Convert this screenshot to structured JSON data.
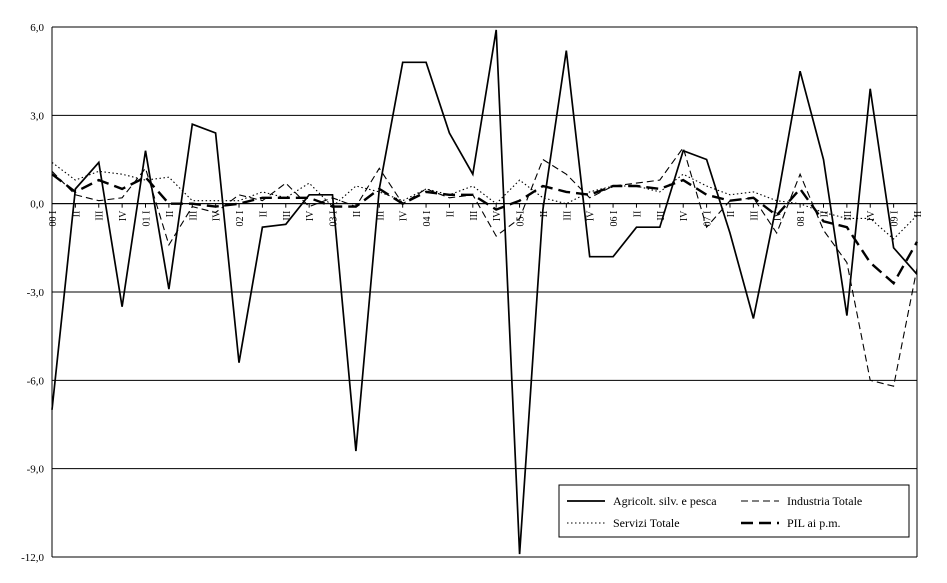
{
  "chart_data": {
    "type": "line",
    "title": "",
    "xlabel": "",
    "ylabel": "",
    "ylim": [
      -12,
      6
    ],
    "y_ticks": [
      "6,0",
      "3,0",
      "0,0",
      "-3,0",
      "-6,0",
      "-9,0",
      "-12,0"
    ],
    "y_tick_values": [
      6,
      3,
      0,
      -3,
      -6,
      -9,
      -12
    ],
    "grid": "horizontal",
    "legend_position": "bottom-right",
    "categories": [
      "00 I",
      "II",
      "III",
      "IV",
      "01 I",
      "II",
      "III",
      "IV",
      "02 I",
      "II",
      "III",
      "IV",
      "03 I",
      "II",
      "III",
      "IV",
      "04 I",
      "II",
      "III",
      "IV",
      "05 I",
      "II",
      "III",
      "IV",
      "06 I",
      "II",
      "III",
      "IV",
      "07 I",
      "II",
      "III",
      "IV",
      "08 I",
      "II",
      "III",
      "IV",
      "09 I",
      "II"
    ],
    "series": [
      {
        "name": "Agricolt. silv. e pesca",
        "style": "solid",
        "color": "#000000",
        "values": [
          -7.0,
          0.5,
          1.4,
          -3.5,
          1.8,
          -2.9,
          2.7,
          2.4,
          -5.4,
          -0.8,
          -0.7,
          0.3,
          0.3,
          -8.4,
          0.5,
          4.8,
          4.8,
          2.4,
          1.0,
          5.9,
          -11.9,
          -0.2,
          5.2,
          -1.8,
          -1.8,
          -0.8,
          -0.8,
          1.8,
          1.5,
          -1.0,
          -3.9,
          0.0,
          4.5,
          1.5,
          -3.8,
          3.9,
          -1.5,
          -2.4
        ]
      },
      {
        "name": "Industria Totale",
        "style": "dashed",
        "color": "#000000",
        "values": [
          1.1,
          0.3,
          0.1,
          0.2,
          1.2,
          -1.4,
          -0.1,
          -0.3,
          0.3,
          0.1,
          0.7,
          -0.1,
          0.2,
          -0.1,
          1.2,
          0.0,
          0.5,
          0.2,
          0.3,
          -1.1,
          -0.5,
          1.5,
          1.0,
          0.2,
          0.6,
          0.7,
          0.8,
          1.9,
          -0.8,
          0.1,
          0.2,
          -1.0,
          1.0,
          -0.9,
          -2.0,
          -6.0,
          -6.2,
          -2.2
        ]
      },
      {
        "name": "Servizi Totale",
        "style": "dotted",
        "color": "#000000",
        "values": [
          1.4,
          0.8,
          1.1,
          1.0,
          0.8,
          0.9,
          0.1,
          0.1,
          0.1,
          0.4,
          0.2,
          0.7,
          -0.1,
          0.6,
          0.4,
          0.1,
          0.5,
          0.3,
          0.6,
          0.0,
          0.8,
          0.2,
          0.0,
          0.4,
          0.6,
          0.6,
          0.4,
          1.0,
          0.6,
          0.3,
          0.4,
          0.1,
          0.0,
          -0.3,
          -0.5,
          -0.5,
          -1.2,
          -0.4
        ]
      },
      {
        "name": "PIL ai p.m.",
        "style": "longdash",
        "color": "#000000",
        "values": [
          1.0,
          0.4,
          0.8,
          0.5,
          0.9,
          0.0,
          0.0,
          -0.1,
          0.0,
          0.2,
          0.2,
          0.2,
          -0.1,
          -0.1,
          0.5,
          0.0,
          0.4,
          0.3,
          0.3,
          -0.2,
          0.1,
          0.6,
          0.4,
          0.3,
          0.6,
          0.6,
          0.5,
          0.8,
          0.3,
          0.1,
          0.2,
          -0.4,
          0.5,
          -0.6,
          -0.8,
          -2.0,
          -2.7,
          -1.3
        ]
      }
    ]
  }
}
